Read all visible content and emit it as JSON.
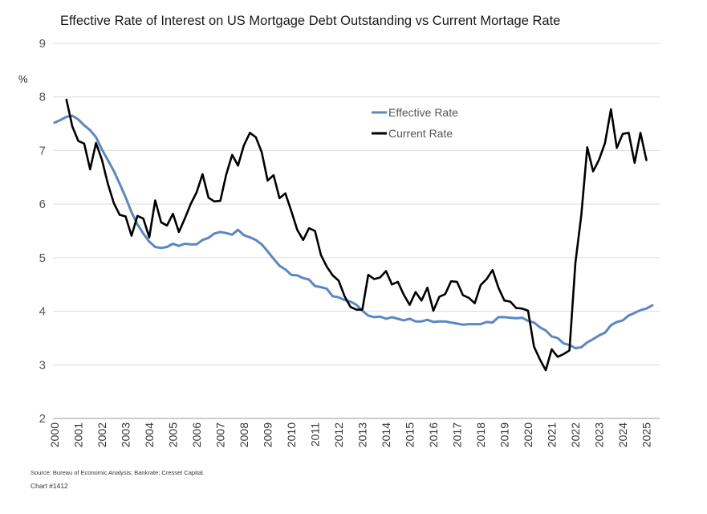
{
  "chart_data": {
    "type": "line",
    "title": "Effective Rate of Interest on US Mortgage Debt Outstanding vs Current Mortage Rate",
    "ylabel": "%",
    "xlabel": "",
    "ylim": [
      2,
      9
    ],
    "yticks": [
      2,
      3,
      4,
      5,
      6,
      7,
      8,
      9
    ],
    "xlim": [
      2000,
      2025.5
    ],
    "xticks": [
      "2000",
      "2001",
      "2002",
      "2003",
      "2004",
      "2005",
      "2006",
      "2007",
      "2008",
      "2009",
      "2010",
      "2011",
      "2012",
      "2013",
      "2014",
      "2015",
      "2016",
      "2017",
      "2018",
      "2019",
      "2020",
      "2021",
      "2022",
      "2023",
      "2024",
      "2025"
    ],
    "grid": "horizontal",
    "legend": "top-center",
    "series": [
      {
        "name": "Effective Rate",
        "color": "#5b87c5",
        "points": [
          [
            2000.0,
            7.52
          ],
          [
            2000.25,
            7.57
          ],
          [
            2000.5,
            7.63
          ],
          [
            2000.75,
            7.65
          ],
          [
            2001.0,
            7.58
          ],
          [
            2001.25,
            7.47
          ],
          [
            2001.5,
            7.38
          ],
          [
            2001.75,
            7.25
          ],
          [
            2002.0,
            7.02
          ],
          [
            2002.25,
            6.82
          ],
          [
            2002.5,
            6.62
          ],
          [
            2002.75,
            6.38
          ],
          [
            2003.0,
            6.13
          ],
          [
            2003.25,
            5.85
          ],
          [
            2003.5,
            5.62
          ],
          [
            2003.75,
            5.45
          ],
          [
            2004.0,
            5.3
          ],
          [
            2004.25,
            5.2
          ],
          [
            2004.5,
            5.18
          ],
          [
            2004.75,
            5.2
          ],
          [
            2005.0,
            5.26
          ],
          [
            2005.25,
            5.22
          ],
          [
            2005.5,
            5.26
          ],
          [
            2005.75,
            5.25
          ],
          [
            2006.0,
            5.25
          ],
          [
            2006.25,
            5.33
          ],
          [
            2006.5,
            5.37
          ],
          [
            2006.75,
            5.45
          ],
          [
            2007.0,
            5.48
          ],
          [
            2007.25,
            5.46
          ],
          [
            2007.5,
            5.43
          ],
          [
            2007.75,
            5.52
          ],
          [
            2008.0,
            5.42
          ],
          [
            2008.25,
            5.38
          ],
          [
            2008.5,
            5.33
          ],
          [
            2008.75,
            5.25
          ],
          [
            2009.0,
            5.12
          ],
          [
            2009.25,
            4.98
          ],
          [
            2009.5,
            4.85
          ],
          [
            2009.75,
            4.78
          ],
          [
            2010.0,
            4.68
          ],
          [
            2010.25,
            4.67
          ],
          [
            2010.5,
            4.62
          ],
          [
            2010.75,
            4.59
          ],
          [
            2011.0,
            4.47
          ],
          [
            2011.25,
            4.45
          ],
          [
            2011.5,
            4.42
          ],
          [
            2011.75,
            4.28
          ],
          [
            2012.0,
            4.26
          ],
          [
            2012.25,
            4.21
          ],
          [
            2012.5,
            4.18
          ],
          [
            2012.75,
            4.12
          ],
          [
            2013.0,
            4.01
          ],
          [
            2013.25,
            3.92
          ],
          [
            2013.5,
            3.89
          ],
          [
            2013.75,
            3.9
          ],
          [
            2014.0,
            3.86
          ],
          [
            2014.25,
            3.89
          ],
          [
            2014.5,
            3.86
          ],
          [
            2014.75,
            3.83
          ],
          [
            2015.0,
            3.86
          ],
          [
            2015.25,
            3.81
          ],
          [
            2015.5,
            3.81
          ],
          [
            2015.75,
            3.84
          ],
          [
            2016.0,
            3.8
          ],
          [
            2016.25,
            3.81
          ],
          [
            2016.5,
            3.81
          ],
          [
            2016.75,
            3.79
          ],
          [
            2017.0,
            3.77
          ],
          [
            2017.25,
            3.75
          ],
          [
            2017.5,
            3.76
          ],
          [
            2017.75,
            3.76
          ],
          [
            2018.0,
            3.76
          ],
          [
            2018.25,
            3.8
          ],
          [
            2018.5,
            3.79
          ],
          [
            2018.75,
            3.89
          ],
          [
            2019.0,
            3.89
          ],
          [
            2019.25,
            3.88
          ],
          [
            2019.5,
            3.87
          ],
          [
            2019.75,
            3.88
          ],
          [
            2020.0,
            3.82
          ],
          [
            2020.25,
            3.79
          ],
          [
            2020.5,
            3.7
          ],
          [
            2020.75,
            3.64
          ],
          [
            2021.0,
            3.53
          ],
          [
            2021.25,
            3.5
          ],
          [
            2021.5,
            3.4
          ],
          [
            2021.75,
            3.37
          ],
          [
            2022.0,
            3.31
          ],
          [
            2022.25,
            3.33
          ],
          [
            2022.5,
            3.42
          ],
          [
            2022.75,
            3.48
          ],
          [
            2023.0,
            3.55
          ],
          [
            2023.25,
            3.6
          ],
          [
            2023.5,
            3.74
          ],
          [
            2023.75,
            3.8
          ],
          [
            2024.0,
            3.83
          ],
          [
            2024.25,
            3.92
          ],
          [
            2024.5,
            3.97
          ],
          [
            2024.75,
            4.02
          ],
          [
            2025.0,
            4.05
          ],
          [
            2025.25,
            4.11
          ]
        ]
      },
      {
        "name": "Current Rate",
        "color": "#000000",
        "points": [
          [
            2000.5,
            7.95
          ],
          [
            2000.75,
            7.45
          ],
          [
            2001.0,
            7.18
          ],
          [
            2001.25,
            7.13
          ],
          [
            2001.5,
            6.65
          ],
          [
            2001.75,
            7.14
          ],
          [
            2002.0,
            6.83
          ],
          [
            2002.25,
            6.38
          ],
          [
            2002.5,
            6.02
          ],
          [
            2002.75,
            5.8
          ],
          [
            2003.0,
            5.77
          ],
          [
            2003.25,
            5.41
          ],
          [
            2003.5,
            5.78
          ],
          [
            2003.75,
            5.73
          ],
          [
            2004.0,
            5.38
          ],
          [
            2004.25,
            6.07
          ],
          [
            2004.5,
            5.66
          ],
          [
            2004.75,
            5.6
          ],
          [
            2005.0,
            5.82
          ],
          [
            2005.25,
            5.48
          ],
          [
            2005.5,
            5.73
          ],
          [
            2005.75,
            6.0
          ],
          [
            2006.0,
            6.22
          ],
          [
            2006.25,
            6.56
          ],
          [
            2006.5,
            6.12
          ],
          [
            2006.75,
            6.05
          ],
          [
            2007.0,
            6.06
          ],
          [
            2007.25,
            6.55
          ],
          [
            2007.5,
            6.92
          ],
          [
            2007.75,
            6.72
          ],
          [
            2008.0,
            7.1
          ],
          [
            2008.25,
            7.33
          ],
          [
            2008.5,
            7.25
          ],
          [
            2008.75,
            6.97
          ],
          [
            2009.0,
            6.44
          ],
          [
            2009.25,
            6.54
          ],
          [
            2009.5,
            6.11
          ],
          [
            2009.75,
            6.2
          ],
          [
            2010.0,
            5.87
          ],
          [
            2010.25,
            5.52
          ],
          [
            2010.5,
            5.33
          ],
          [
            2010.75,
            5.55
          ],
          [
            2011.0,
            5.5
          ],
          [
            2011.25,
            5.05
          ],
          [
            2011.5,
            4.83
          ],
          [
            2011.75,
            4.67
          ],
          [
            2012.0,
            4.57
          ],
          [
            2012.25,
            4.28
          ],
          [
            2012.5,
            4.08
          ],
          [
            2012.75,
            4.03
          ],
          [
            2013.0,
            4.03
          ],
          [
            2013.25,
            4.68
          ],
          [
            2013.5,
            4.6
          ],
          [
            2013.75,
            4.63
          ],
          [
            2014.0,
            4.75
          ],
          [
            2014.25,
            4.5
          ],
          [
            2014.5,
            4.55
          ],
          [
            2014.75,
            4.31
          ],
          [
            2015.0,
            4.12
          ],
          [
            2015.25,
            4.36
          ],
          [
            2015.5,
            4.2
          ],
          [
            2015.75,
            4.44
          ],
          [
            2016.0,
            4.01
          ],
          [
            2016.25,
            4.27
          ],
          [
            2016.5,
            4.32
          ],
          [
            2016.75,
            4.56
          ],
          [
            2017.0,
            4.55
          ],
          [
            2017.25,
            4.3
          ],
          [
            2017.5,
            4.25
          ],
          [
            2017.75,
            4.15
          ],
          [
            2018.0,
            4.49
          ],
          [
            2018.25,
            4.6
          ],
          [
            2018.5,
            4.77
          ],
          [
            2018.75,
            4.44
          ],
          [
            2019.0,
            4.2
          ],
          [
            2019.25,
            4.18
          ],
          [
            2019.5,
            4.06
          ],
          [
            2019.75,
            4.05
          ],
          [
            2020.0,
            4.01
          ],
          [
            2020.25,
            3.34
          ],
          [
            2020.5,
            3.1
          ],
          [
            2020.75,
            2.9
          ],
          [
            2021.0,
            3.29
          ],
          [
            2021.25,
            3.15
          ],
          [
            2021.5,
            3.2
          ],
          [
            2021.75,
            3.27
          ],
          [
            2022.0,
            4.9
          ],
          [
            2022.25,
            5.8
          ],
          [
            2022.5,
            7.06
          ],
          [
            2022.75,
            6.61
          ],
          [
            2023.0,
            6.83
          ],
          [
            2023.25,
            7.14
          ],
          [
            2023.5,
            7.77
          ],
          [
            2023.75,
            7.05
          ],
          [
            2024.0,
            7.31
          ],
          [
            2024.25,
            7.33
          ],
          [
            2024.5,
            6.77
          ],
          [
            2024.75,
            7.33
          ],
          [
            2025.0,
            6.82
          ]
        ]
      }
    ]
  },
  "footer": {
    "source": "Source: Bureau of Economic Analysis; Bankrate; Cresset Capital.",
    "chart_number": "Chart #1412"
  }
}
